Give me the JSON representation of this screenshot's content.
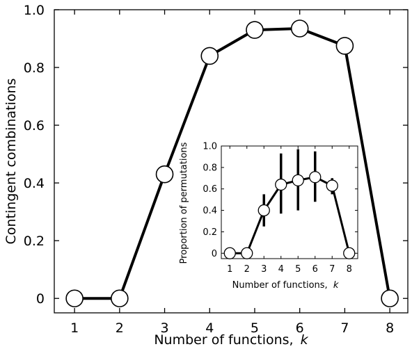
{
  "chart_data": [
    {
      "id": "main",
      "type": "line",
      "xlabel": "Number of functions,",
      "xlabel_var": "k",
      "ylabel": "Contingent combinations",
      "x": [
        1,
        2,
        3,
        4,
        5,
        6,
        7,
        8
      ],
      "y": [
        0.0,
        0.0,
        0.43,
        0.84,
        0.93,
        0.935,
        0.875,
        0.0
      ],
      "xlim": [
        0.55,
        8.4
      ],
      "ylim": [
        -0.05,
        1.0
      ],
      "xticks": [
        "1",
        "2",
        "3",
        "4",
        "5",
        "6",
        "7",
        "8"
      ],
      "yticks": [
        "0",
        "0.2",
        "0.4",
        "0.6",
        "0.8",
        "1.0"
      ],
      "ytick_values": [
        0,
        0.2,
        0.4,
        0.6,
        0.8,
        1.0
      ],
      "grid": false,
      "marker": "open-circle",
      "color": "#000000"
    },
    {
      "id": "inset",
      "type": "line",
      "xlabel": "Number of functions,",
      "xlabel_var": "k",
      "ylabel": "Proportion of permutations",
      "x": [
        1,
        2,
        3,
        4,
        5,
        6,
        7,
        8
      ],
      "y": [
        0.0,
        0.0,
        0.4,
        0.64,
        0.68,
        0.71,
        0.63,
        0.0
      ],
      "error_low": [
        null,
        null,
        0.25,
        0.37,
        0.4,
        0.48,
        0.55,
        null
      ],
      "error_high": [
        null,
        null,
        0.55,
        0.93,
        0.97,
        0.95,
        0.7,
        null
      ],
      "xlim": [
        0.5,
        8.5
      ],
      "ylim": [
        -0.05,
        1.0
      ],
      "xticks": [
        "1",
        "2",
        "3",
        "4",
        "5",
        "6",
        "7",
        "8"
      ],
      "yticks": [
        "0",
        "0.2",
        "0.4",
        "0.6",
        "0.8",
        "1.0"
      ],
      "ytick_values": [
        0,
        0.2,
        0.4,
        0.6,
        0.8,
        1.0
      ],
      "grid": false,
      "marker": "open-circle",
      "color": "#000000"
    }
  ]
}
